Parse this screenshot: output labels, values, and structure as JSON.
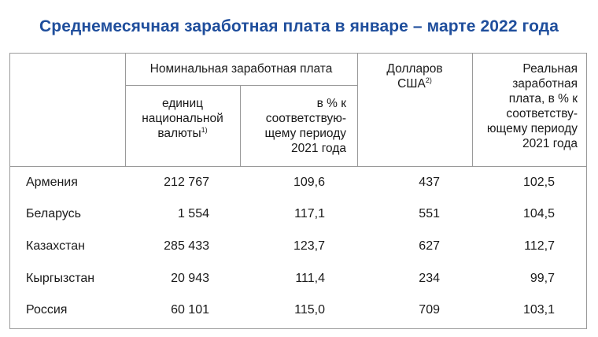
{
  "title": "Среднемесячная заработная плата в январе – марте 2022 года",
  "header": {
    "nominal_group": "Номинальная заработная плата",
    "units_lines": [
      "единиц",
      "национальной",
      "валюты"
    ],
    "units_note": "1)",
    "percent_lines": [
      "в % к",
      "соответствую-",
      "щему периоду",
      "2021 года"
    ],
    "usd_lines": [
      "Долларов",
      "США"
    ],
    "usd_note": "2)",
    "real_lines": [
      "Реальная",
      "заработная",
      "плата, в % к",
      "соответству-",
      "ющему периоду",
      "2021 года"
    ]
  },
  "rows": [
    {
      "country": "Армения",
      "units": "212 767",
      "percent": "109,6",
      "usd": "437",
      "real": "102,5"
    },
    {
      "country": "Беларусь",
      "units": "1 554",
      "percent": "117,1",
      "usd": "551",
      "real": "104,5"
    },
    {
      "country": "Казахстан",
      "units": "285 433",
      "percent": "123,7",
      "usd": "627",
      "real": "112,7"
    },
    {
      "country": "Кыргызстан",
      "units": "20 943",
      "percent": "111,4",
      "usd": "234",
      "real": "99,7"
    },
    {
      "country": "Россия",
      "units": "60 101",
      "percent": "115,0",
      "usd": "709",
      "real": "103,1"
    }
  ]
}
